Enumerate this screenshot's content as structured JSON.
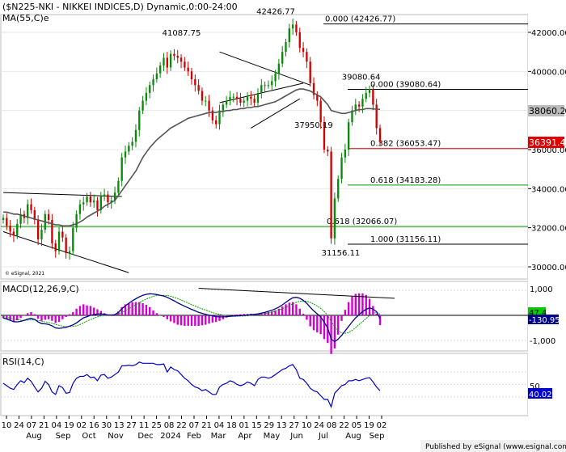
{
  "header": {
    "title": "($N225-NKI - NIKKEI INDICES,D) Dynamic,0:00-24:00",
    "ma_label": "MA(55,C)e"
  },
  "footer": {
    "copyright": "© eSignal, 2021",
    "published": "Published by eSignal (www.esignal.com)"
  },
  "price_panel": {
    "ylim": [
      29500,
      43000
    ],
    "ticks": [
      "42000.00",
      "40000.00",
      "38000.00",
      "36000.00",
      "34000.00",
      "32000.00",
      "30000.00"
    ],
    "tick_values": [
      42000,
      40000,
      38000,
      36000,
      34000,
      32000,
      30000
    ],
    "current_price": "36391.47",
    "ma_value": "38060.27",
    "fib_levels": [
      {
        "label": "0.000 (42426.77)",
        "value": 42426.77
      },
      {
        "label": "0.000 (39080.64)",
        "value": 39080.64
      },
      {
        "label": "0.382 (36053.47)",
        "value": 36053.47
      },
      {
        "label": "0.618 (34183.28)",
        "value": 34183.28
      },
      {
        "label": "0.618 (32066.07)",
        "value": 32066.07
      },
      {
        "label": "1.000 (31156.11)",
        "value": 31156.11
      }
    ],
    "annotations": [
      "42426.77",
      "41087.75",
      "39080.64",
      "37950.19",
      "31156.11"
    ],
    "colors": {
      "up": "#0a8a0a",
      "down": "#d00000",
      "ma": "#555555",
      "fib_red": "#cc0000",
      "fib_green": "#009900",
      "line_black": "#000000"
    }
  },
  "macd_panel": {
    "label": "MACD(12,26,9,C)",
    "ticks": [
      "1,000",
      "-1,000"
    ],
    "value_signal": "47.4",
    "value_macd": "-130.95",
    "colors": {
      "macd": "#00008b",
      "signal": "#00a000",
      "hist": "#d000d0"
    }
  },
  "rsi_panel": {
    "label": "RSI(14,C)",
    "ticks": [
      "50"
    ],
    "value": "40.02",
    "colors": {
      "rsi": "#0000cc"
    }
  },
  "x_axis": {
    "day_labels": [
      "10",
      "24",
      "07",
      "21",
      "04",
      "19",
      "02",
      "16",
      "30",
      "13",
      "27",
      "11",
      "25",
      "08",
      "22",
      "07",
      "21",
      "04",
      "18",
      "01",
      "15",
      "29",
      "13",
      "27",
      "10",
      "24",
      "08",
      "22",
      "05",
      "19",
      "02"
    ],
    "month_labels": [
      "Aug",
      "Sep",
      "Oct",
      "Nov",
      "Dec",
      "2024",
      "Feb",
      "Mar",
      "Apr",
      "May",
      "Jun",
      "Jul",
      "Aug",
      "Sep"
    ]
  },
  "chart_data": {
    "type": "line",
    "series": [
      {
        "name": "$N225-NKI",
        "values": [
          32500,
          32100,
          31800,
          31600,
          32200,
          32700,
          32500,
          33200,
          32900,
          32400,
          31400,
          31900,
          32700,
          32400,
          31200,
          30800,
          31800,
          31500,
          30700,
          30800,
          32000,
          32700,
          33200,
          33300,
          33600,
          33300,
          33400,
          32900,
          33600,
          33700,
          33300,
          33400,
          33800,
          34400,
          35600,
          35900,
          36200,
          36400,
          37000,
          38000,
          38500,
          38900,
          39300,
          39600,
          39900,
          40300,
          40700,
          40200,
          40900,
          40800,
          40700,
          40500,
          40200,
          40000,
          39600,
          39300,
          39000,
          38500,
          38500,
          38000,
          37500,
          37300,
          38000,
          38300,
          38500,
          38700,
          38700,
          38600,
          38400,
          38500,
          38700,
          38600,
          38400,
          38900,
          39300,
          39300,
          39300,
          39500,
          39900,
          40400,
          41000,
          41500,
          42200,
          42400,
          42000,
          41200,
          41000,
          40500,
          39400,
          38800,
          38500,
          37400,
          36000,
          35900,
          31458,
          33500,
          34500,
          35600,
          36000,
          37400,
          38000,
          38300,
          38200,
          38600,
          38900,
          39100,
          38300,
          37100,
          36391
        ]
      },
      {
        "name": "MA(55,C)",
        "values": [
          32800,
          32800,
          32750,
          32700,
          32700,
          32650,
          32600,
          32550,
          32500,
          32450,
          32400,
          32350,
          32300,
          32250,
          32200,
          32150,
          32150,
          32100,
          32100,
          32100,
          32150,
          32200,
          32300,
          32400,
          32550,
          32650,
          32750,
          32850,
          32950,
          33100,
          33200,
          33300,
          33400,
          33650,
          33900,
          34150,
          34400,
          34650,
          34900,
          35250,
          35600,
          35850,
          36100,
          36300,
          36500,
          36650,
          36800,
          36950,
          37100,
          37200,
          37300,
          37400,
          37500,
          37600,
          37650,
          37700,
          37750,
          37800,
          37850,
          37900,
          37900,
          37900,
          37950,
          37950,
          38000,
          38000,
          38050,
          38050,
          38100,
          38100,
          38150,
          38150,
          38200,
          38200,
          38250,
          38300,
          38350,
          38400,
          38450,
          38550,
          38650,
          38750,
          38850,
          38950,
          39050,
          39100,
          39100,
          39050,
          39000,
          38900,
          38800,
          38700,
          38500,
          38300,
          38000,
          37950,
          37900,
          37850,
          37850,
          37900,
          37950,
          38000,
          38050,
          38050,
          38100,
          38100,
          38080,
          38070,
          38060
        ]
      }
    ],
    "macd": [
      -100,
      -150,
      -200,
      -250,
      -260,
      -240,
      -200,
      -150,
      -120,
      -160,
      -260,
      -330,
      -340,
      -360,
      -420,
      -500,
      -520,
      -500,
      -480,
      -430,
      -380,
      -300,
      -200,
      -100,
      -50,
      0,
      30,
      50,
      60,
      40,
      20,
      10,
      30,
      120,
      260,
      380,
      480,
      580,
      660,
      740,
      800,
      840,
      860,
      850,
      830,
      800,
      770,
      720,
      650,
      580,
      500,
      430,
      360,
      300,
      240,
      180,
      120,
      80,
      40,
      10,
      -20,
      -50,
      -60,
      -60,
      -50,
      -40,
      -30,
      -20,
      -10,
      0,
      10,
      30,
      40,
      60,
      90,
      120,
      160,
      200,
      260,
      330,
      420,
      520,
      620,
      700,
      720,
      680,
      600,
      480,
      320,
      180,
      60,
      -60,
      -280,
      -500,
      -950,
      -1050,
      -950,
      -800,
      -620,
      -440,
      -260,
      -100,
      30,
      150,
      240,
      300,
      250,
      150,
      -130
    ],
    "macd_signal": [
      -50,
      -80,
      -110,
      -140,
      -170,
      -190,
      -200,
      -190,
      -180,
      -180,
      -200,
      -230,
      -260,
      -290,
      -320,
      -360,
      -400,
      -430,
      -450,
      -450,
      -440,
      -420,
      -370,
      -300,
      -230,
      -170,
      -110,
      -60,
      -20,
      0,
      10,
      15,
      20,
      50,
      110,
      180,
      260,
      340,
      420,
      500,
      580,
      650,
      710,
      760,
      790,
      800,
      800,
      790,
      760,
      720,
      670,
      610,
      550,
      490,
      430,
      370,
      310,
      260,
      210,
      160,
      110,
      70,
      40,
      10,
      -10,
      -25,
      -35,
      -35,
      -30,
      -25,
      -15,
      0,
      15,
      30,
      50,
      70,
      100,
      130,
      170,
      210,
      260,
      320,
      390,
      460,
      520,
      560,
      570,
      560,
      520,
      450,
      370,
      280,
      150,
      0,
      -250,
      -450,
      -600,
      -700,
      -720,
      -680,
      -600,
      -490,
      -370,
      -250,
      -130,
      0,
      80,
      120,
      47
    ],
    "rsi": [
      52,
      48,
      44,
      42,
      50,
      56,
      53,
      60,
      55,
      46,
      38,
      44,
      55,
      50,
      38,
      34,
      48,
      45,
      36,
      37,
      52,
      60,
      63,
      63,
      66,
      61,
      62,
      56,
      65,
      66,
      60,
      62,
      66,
      70,
      80,
      80,
      81,
      80,
      82,
      86,
      84,
      84,
      84,
      84,
      82,
      82,
      83,
      70,
      78,
      74,
      72,
      66,
      60,
      56,
      50,
      46,
      44,
      40,
      42,
      38,
      34,
      34,
      46,
      50,
      52,
      56,
      54,
      50,
      48,
      50,
      54,
      52,
      48,
      58,
      62,
      62,
      60,
      62,
      66,
      70,
      74,
      76,
      80,
      82,
      74,
      60,
      58,
      52,
      44,
      40,
      38,
      32,
      26,
      26,
      14,
      36,
      42,
      48,
      50,
      56,
      56,
      58,
      56,
      58,
      60,
      61,
      54,
      46,
      40
    ],
    "ylim": [
      29500,
      43000
    ]
  }
}
